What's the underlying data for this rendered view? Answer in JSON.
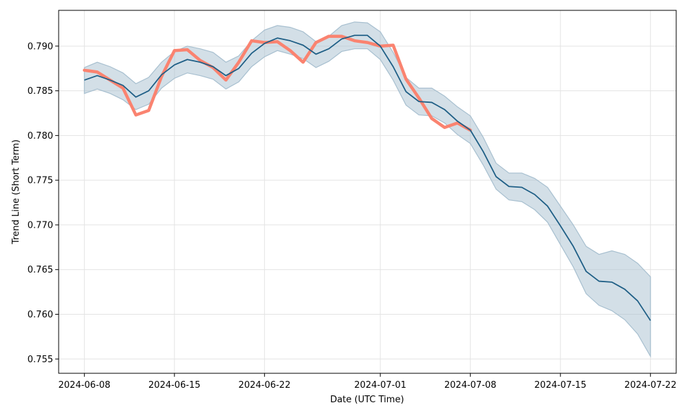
{
  "chart_data": {
    "type": "line",
    "xlabel": "Date (UTC Time)",
    "ylabel": "Trend Line (Short Term)",
    "grid": true,
    "xlim": [
      "2024-06-06",
      "2024-07-24"
    ],
    "ylim": [
      0.7534,
      0.794
    ],
    "x_ticks": [
      "2024-06-08",
      "2024-06-15",
      "2024-06-22",
      "2024-07-01",
      "2024-07-08",
      "2024-07-15",
      "2024-07-22"
    ],
    "y_ticks": [
      "0.755",
      "0.760",
      "0.765",
      "0.770",
      "0.775",
      "0.780",
      "0.785",
      "0.790"
    ],
    "colors": {
      "trend": "#1f5f86",
      "band": "#a7bfcf",
      "actual": "#fa8370",
      "grid": "#e3e3e3"
    },
    "trend": {
      "x": [
        "2024-06-08",
        "2024-06-09",
        "2024-06-10",
        "2024-06-11",
        "2024-06-12",
        "2024-06-13",
        "2024-06-14",
        "2024-06-15",
        "2024-06-16",
        "2024-06-17",
        "2024-06-18",
        "2024-06-19",
        "2024-06-20",
        "2024-06-21",
        "2024-06-22",
        "2024-06-23",
        "2024-06-24",
        "2024-06-25",
        "2024-06-26",
        "2024-06-27",
        "2024-06-28",
        "2024-06-29",
        "2024-06-30",
        "2024-07-01",
        "2024-07-02",
        "2024-07-03",
        "2024-07-04",
        "2024-07-05",
        "2024-07-06",
        "2024-07-07",
        "2024-07-08",
        "2024-07-09",
        "2024-07-10",
        "2024-07-11",
        "2024-07-12",
        "2024-07-13",
        "2024-07-14",
        "2024-07-15",
        "2024-07-16",
        "2024-07-17",
        "2024-07-18",
        "2024-07-19",
        "2024-07-20",
        "2024-07-21",
        "2024-07-22"
      ],
      "y": [
        0.7862,
        0.7867,
        0.7862,
        0.7856,
        0.7843,
        0.785,
        0.7868,
        0.7879,
        0.7885,
        0.7882,
        0.7877,
        0.7867,
        0.7875,
        0.7892,
        0.7903,
        0.7909,
        0.7906,
        0.7901,
        0.7891,
        0.7897,
        0.7908,
        0.7912,
        0.7912,
        0.79,
        0.7877,
        0.7849,
        0.7838,
        0.7837,
        0.7829,
        0.7816,
        0.7806,
        0.7782,
        0.7754,
        0.7743,
        0.7742,
        0.7734,
        0.7721,
        0.7699,
        0.7676,
        0.7648,
        0.7637,
        0.7636,
        0.7628,
        0.7615,
        0.7593
      ],
      "upper": [
        0.7876,
        0.7882,
        0.7877,
        0.787,
        0.7858,
        0.7865,
        0.7882,
        0.7894,
        0.79,
        0.7897,
        0.7893,
        0.7882,
        0.7889,
        0.7906,
        0.7918,
        0.7923,
        0.7921,
        0.7916,
        0.7905,
        0.7911,
        0.7923,
        0.7927,
        0.7926,
        0.7916,
        0.7893,
        0.7865,
        0.7853,
        0.7853,
        0.7844,
        0.7832,
        0.7822,
        0.7798,
        0.7769,
        0.7758,
        0.7758,
        0.7752,
        0.7742,
        0.7721,
        0.77,
        0.7676,
        0.7667,
        0.7671,
        0.7667,
        0.7657,
        0.7642
      ],
      "lower": [
        0.7847,
        0.7852,
        0.7847,
        0.784,
        0.7829,
        0.7835,
        0.7853,
        0.7864,
        0.787,
        0.7867,
        0.7863,
        0.7852,
        0.786,
        0.7877,
        0.7888,
        0.7895,
        0.7891,
        0.7886,
        0.7876,
        0.7883,
        0.7894,
        0.7897,
        0.7897,
        0.7885,
        0.7862,
        0.7834,
        0.7823,
        0.7822,
        0.7814,
        0.7801,
        0.7791,
        0.7767,
        0.774,
        0.7728,
        0.7726,
        0.7717,
        0.7703,
        0.7678,
        0.7653,
        0.7623,
        0.761,
        0.7604,
        0.7594,
        0.7578,
        0.7553
      ]
    },
    "actual": {
      "x": [
        "2024-06-08",
        "2024-06-09",
        "2024-06-10",
        "2024-06-11",
        "2024-06-12",
        "2024-06-13",
        "2024-06-14",
        "2024-06-15",
        "2024-06-16",
        "2024-06-17",
        "2024-06-18",
        "2024-06-19",
        "2024-06-20",
        "2024-06-21",
        "2024-06-22",
        "2024-06-23",
        "2024-06-24",
        "2024-06-25",
        "2024-06-26",
        "2024-06-27",
        "2024-06-28",
        "2024-06-29",
        "2024-06-30",
        "2024-07-01",
        "2024-07-02",
        "2024-07-03",
        "2024-07-04",
        "2024-07-05",
        "2024-07-06",
        "2024-07-07",
        "2024-07-08"
      ],
      "y": [
        0.7873,
        0.7871,
        0.7862,
        0.7853,
        0.7823,
        0.7828,
        0.7866,
        0.7895,
        0.7896,
        0.7884,
        0.7876,
        0.7862,
        0.7882,
        0.7906,
        0.7904,
        0.7905,
        0.7895,
        0.7882,
        0.7904,
        0.7911,
        0.7911,
        0.7906,
        0.7904,
        0.79,
        0.7901,
        0.7863,
        0.7842,
        0.7819,
        0.7809,
        0.7814,
        0.7806
      ]
    }
  }
}
